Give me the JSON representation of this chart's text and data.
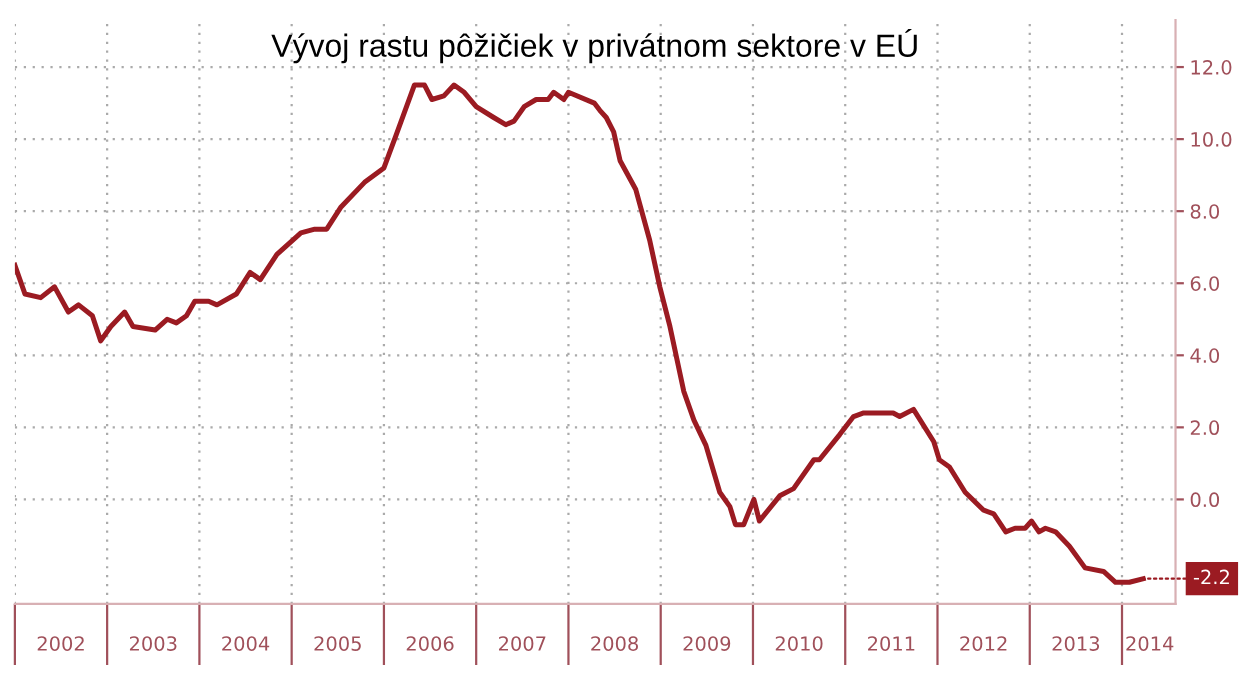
{
  "chart_data": {
    "type": "line",
    "title": "Vývoj rastu pôžičiek v privátnom sektore v EÚ",
    "x": [
      2002.0,
      2002.11,
      2002.28,
      2002.43,
      2002.58,
      2002.69,
      2002.84,
      2002.93,
      2003.04,
      2003.19,
      2003.28,
      2003.52,
      2003.65,
      2003.75,
      2003.86,
      2003.95,
      2004.1,
      2004.19,
      2004.4,
      2004.55,
      2004.66,
      2004.84,
      2005.1,
      2005.25,
      2005.38,
      2005.53,
      2005.79,
      2006.0,
      2006.13,
      2006.33,
      2006.44,
      2006.52,
      2006.65,
      2006.76,
      2006.87,
      2007.0,
      2007.19,
      2007.32,
      2007.41,
      2007.52,
      2007.65,
      2007.78,
      2007.84,
      2007.95,
      2008.0,
      2008.28,
      2008.34,
      2008.41,
      2008.49,
      2008.56,
      2008.73,
      2008.88,
      2008.99,
      2009.1,
      2009.25,
      2009.36,
      2009.49,
      2009.64,
      2009.75,
      2009.81,
      2009.9,
      2010.01,
      2010.07,
      2010.29,
      2010.44,
      2010.66,
      2010.72,
      2010.94,
      2011.09,
      2011.2,
      2011.52,
      2011.59,
      2011.74,
      2011.96,
      2012.02,
      2012.13,
      2012.3,
      2012.5,
      2012.61,
      2012.74,
      2012.84,
      2012.95,
      2013.02,
      2013.1,
      2013.17,
      2013.28,
      2013.43,
      2013.6,
      2013.8,
      2013.93,
      2014.08,
      2014.23
    ],
    "series": [
      {
        "color": "#9b1b22",
        "values": [
          6.5,
          5.7,
          5.6,
          5.9,
          5.2,
          5.4,
          5.1,
          4.4,
          4.8,
          5.2,
          4.8,
          4.7,
          5.0,
          4.9,
          5.1,
          5.5,
          5.5,
          5.4,
          5.7,
          6.3,
          6.1,
          6.8,
          7.4,
          7.5,
          7.5,
          8.1,
          8.8,
          9.2,
          10.1,
          11.5,
          11.5,
          11.1,
          11.2,
          11.5,
          11.3,
          10.9,
          10.6,
          10.4,
          10.5,
          10.9,
          11.1,
          11.1,
          11.3,
          11.1,
          11.3,
          11.0,
          10.8,
          10.6,
          10.2,
          9.4,
          8.6,
          7.2,
          5.9,
          4.8,
          3.0,
          2.2,
          1.5,
          0.2,
          -0.2,
          -0.7,
          -0.7,
          0.0,
          -0.6,
          0.1,
          0.3,
          1.1,
          1.1,
          1.8,
          2.3,
          2.4,
          2.4,
          2.3,
          2.5,
          1.6,
          1.1,
          0.9,
          0.2,
          -0.3,
          -0.4,
          -0.9,
          -0.8,
          -0.8,
          -0.6,
          -0.9,
          -0.8,
          -0.9,
          -1.3,
          -1.9,
          -2.0,
          -2.3,
          -2.3,
          -2.2
        ]
      }
    ],
    "xlim": [
      2002.0,
      2014.58
    ],
    "ylim": [
      -2.9,
      13.3
    ],
    "xticks": [
      {
        "value": 2002.0,
        "label": null
      },
      {
        "value": 2002.5,
        "label": "2002"
      },
      {
        "value": 2003.0,
        "label": null
      },
      {
        "value": 2003.5,
        "label": "2003"
      },
      {
        "value": 2004.0,
        "label": null
      },
      {
        "value": 2004.5,
        "label": "2004"
      },
      {
        "value": 2005.0,
        "label": null
      },
      {
        "value": 2005.5,
        "label": "2005"
      },
      {
        "value": 2006.0,
        "label": null
      },
      {
        "value": 2006.5,
        "label": "2006"
      },
      {
        "value": 2007.0,
        "label": null
      },
      {
        "value": 2007.5,
        "label": "2007"
      },
      {
        "value": 2008.0,
        "label": null
      },
      {
        "value": 2008.5,
        "label": "2008"
      },
      {
        "value": 2009.0,
        "label": null
      },
      {
        "value": 2009.5,
        "label": "2009"
      },
      {
        "value": 2010.0,
        "label": null
      },
      {
        "value": 2010.5,
        "label": "2010"
      },
      {
        "value": 2011.0,
        "label": null
      },
      {
        "value": 2011.5,
        "label": "2011"
      },
      {
        "value": 2012.0,
        "label": null
      },
      {
        "value": 2012.5,
        "label": "2012"
      },
      {
        "value": 2013.0,
        "label": null
      },
      {
        "value": 2013.5,
        "label": "2013"
      },
      {
        "value": 2014.0,
        "label": null
      },
      {
        "value": 2014.3,
        "label": "2014"
      }
    ],
    "yticks": [
      {
        "value": 12,
        "label": "12.0"
      },
      {
        "value": 10,
        "label": "10.0"
      },
      {
        "value": 8,
        "label": "8.0"
      },
      {
        "value": 6,
        "label": "6.0"
      },
      {
        "value": 4,
        "label": "4.0"
      },
      {
        "value": 2,
        "label": "2.0"
      },
      {
        "value": 0,
        "label": "0.0"
      }
    ],
    "annotations": [
      {
        "text": "-2.2",
        "x": 2014.23,
        "y": -2.2
      }
    ],
    "grid": true,
    "marker": "none",
    "line_style": "solid",
    "legend": false
  }
}
